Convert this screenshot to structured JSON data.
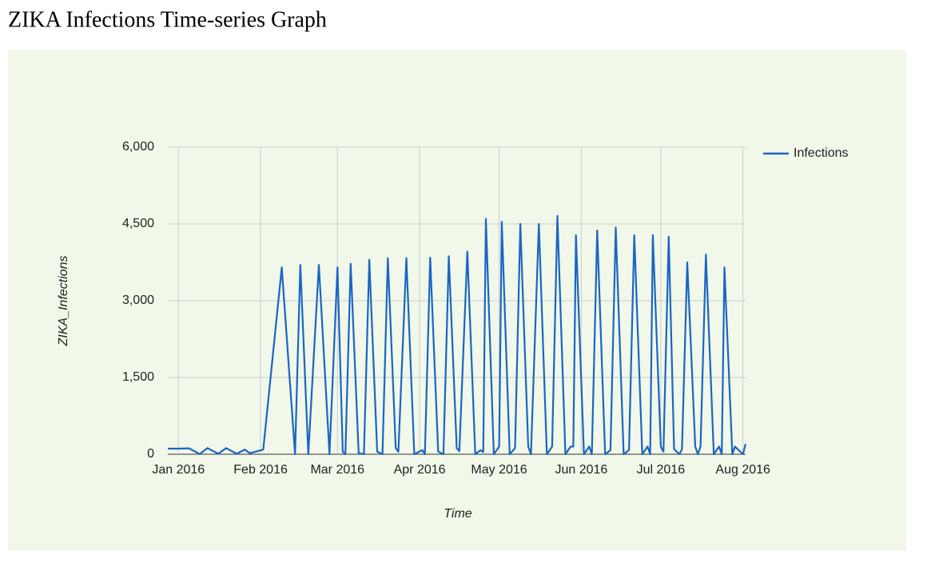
{
  "chart_data": {
    "type": "line",
    "title": "ZIKA Infections Time-series Graph",
    "x_label": "Time",
    "y_label": "ZIKA_Infections",
    "x": [
      "2015-12-28",
      "2016-01-01",
      "2016-01-05",
      "2016-01-09",
      "2016-01-12",
      "2016-01-16",
      "2016-01-19",
      "2016-01-23",
      "2016-01-26",
      "2016-01-28",
      "2016-02-02",
      "2016-02-09",
      "2016-02-14",
      "2016-02-16",
      "2016-02-19",
      "2016-02-23",
      "2016-02-27",
      "2016-03-01",
      "2016-03-03",
      "2016-03-04",
      "2016-03-06",
      "2016-03-09",
      "2016-03-11",
      "2016-03-13",
      "2016-03-16",
      "2016-03-18",
      "2016-03-20",
      "2016-03-23",
      "2016-03-24",
      "2016-03-27",
      "2016-03-30",
      "2016-04-02",
      "2016-04-03",
      "2016-04-05",
      "2016-04-08",
      "2016-04-10",
      "2016-04-12",
      "2016-04-15",
      "2016-04-16",
      "2016-04-19",
      "2016-04-22",
      "2016-04-24",
      "2016-04-25",
      "2016-04-26",
      "2016-04-29",
      "2016-05-01",
      "2016-05-02",
      "2016-05-05",
      "2016-05-07",
      "2016-05-09",
      "2016-05-12",
      "2016-05-13",
      "2016-05-16",
      "2016-05-19",
      "2016-05-21",
      "2016-05-23",
      "2016-05-26",
      "2016-05-28",
      "2016-05-29",
      "2016-05-30",
      "2016-06-02",
      "2016-06-04",
      "2016-06-05",
      "2016-06-07",
      "2016-06-10",
      "2016-06-12",
      "2016-06-14",
      "2016-06-17",
      "2016-06-19",
      "2016-06-21",
      "2016-06-24",
      "2016-06-26",
      "2016-06-27",
      "2016-06-28",
      "2016-07-01",
      "2016-07-02",
      "2016-07-04",
      "2016-07-06",
      "2016-07-08",
      "2016-07-09",
      "2016-07-11",
      "2016-07-14",
      "2016-07-15",
      "2016-07-16",
      "2016-07-18",
      "2016-07-21",
      "2016-07-23",
      "2016-07-24",
      "2016-07-25",
      "2016-07-28",
      "2016-07-29",
      "2016-08-01",
      "2016-08-02"
    ],
    "series": [
      {
        "name": "Infections",
        "color": "#1a66c2",
        "values": [
          110,
          110,
          115,
          5,
          120,
          10,
          120,
          10,
          90,
          20,
          90,
          3650,
          0,
          3700,
          0,
          3700,
          0,
          3650,
          50,
          0,
          3720,
          20,
          0,
          3800,
          50,
          0,
          3830,
          120,
          50,
          3830,
          0,
          80,
          0,
          3840,
          50,
          0,
          3870,
          120,
          60,
          3960,
          0,
          80,
          40,
          4600,
          0,
          150,
          4540,
          0,
          120,
          4500,
          150,
          0,
          4500,
          0,
          150,
          4660,
          0,
          150,
          150,
          4280,
          0,
          150,
          0,
          4370,
          0,
          80,
          4430,
          0,
          80,
          4280,
          0,
          150,
          0,
          4280,
          150,
          50,
          4250,
          100,
          0,
          100,
          3750,
          150,
          0,
          150,
          3900,
          0,
          150,
          0,
          3650,
          0,
          150,
          0,
          200
        ]
      }
    ],
    "xlim": [
      "2015-12-28",
      "2016-08-02"
    ],
    "xticks": [
      {
        "value": "2016-01",
        "label": "Jan 2016"
      },
      {
        "value": "2016-02",
        "label": "Feb 2016"
      },
      {
        "value": "2016-03",
        "label": "Mar 2016"
      },
      {
        "value": "2016-04",
        "label": "Apr 2016"
      },
      {
        "value": "2016-05",
        "label": "May 2016"
      },
      {
        "value": "2016-06",
        "label": "Jun 2016"
      },
      {
        "value": "2016-07",
        "label": "Jul 2016"
      },
      {
        "value": "2016-08",
        "label": "Aug 2016"
      }
    ],
    "ylim": [
      0,
      6000
    ],
    "yticks": [
      0,
      {
        "value": 1500,
        "label": "1,500"
      },
      {
        "value": 3000,
        "label": "3,000"
      },
      {
        "value": 4500,
        "label": "4,500"
      },
      {
        "value": 6000,
        "label": "6,000"
      }
    ],
    "grid": true,
    "legend": "right"
  }
}
